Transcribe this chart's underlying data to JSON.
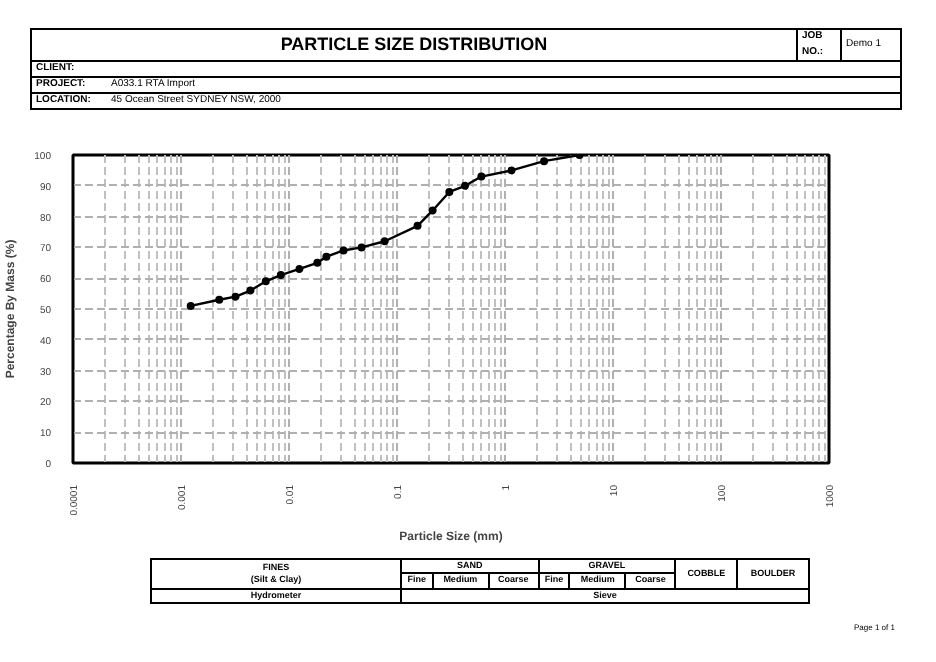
{
  "chart_data": {
    "type": "line",
    "title": "PARTICLE SIZE DISTRIBUTION",
    "xlabel": "Particle Size (mm)",
    "ylabel": "Percentage By Mass (%)",
    "log": "x",
    "xlim": [
      0.0001,
      1000
    ],
    "xticks": [
      0.0001,
      0.001,
      0.01,
      0.1,
      1,
      10,
      100,
      1000
    ],
    "ylim": [
      0,
      100
    ],
    "yticks": [
      0,
      10,
      20,
      30,
      40,
      50,
      60,
      70,
      80,
      90,
      100
    ],
    "grid": true,
    "marker": "circle",
    "line_style": "solid",
    "series": [
      {
        "color": "#000000",
        "x": [
          0.00123,
          0.00226,
          0.0032,
          0.0044,
          0.0061,
          0.0084,
          0.0125,
          0.0183,
          0.0222,
          0.032,
          0.047,
          0.077,
          0.155,
          0.214,
          0.305,
          0.427,
          0.604,
          1.15,
          2.3,
          4.9
        ],
        "values": [
          51,
          53,
          54,
          56,
          59,
          61,
          63,
          65,
          67,
          69,
          70,
          72,
          77,
          82,
          88,
          90,
          93,
          95,
          98,
          100
        ]
      }
    ],
    "annotations": [
      "JOB NO.:",
      "Demo 1",
      "CLIENT:",
      "PROJECT:",
      "A033.1 RTA Import",
      "LOCATION:",
      "45 Ocean Street SYDNEY NSW, 2000",
      "FINES (Silt & Clay)",
      "SAND",
      "GRAVEL",
      "COBBLE",
      "BOULDER",
      "Fine",
      "Medium",
      "Coarse",
      "Fine",
      "Medium",
      "Coarse",
      "Hydrometer",
      "Sieve",
      "Page 1 of 1"
    ]
  }
}
